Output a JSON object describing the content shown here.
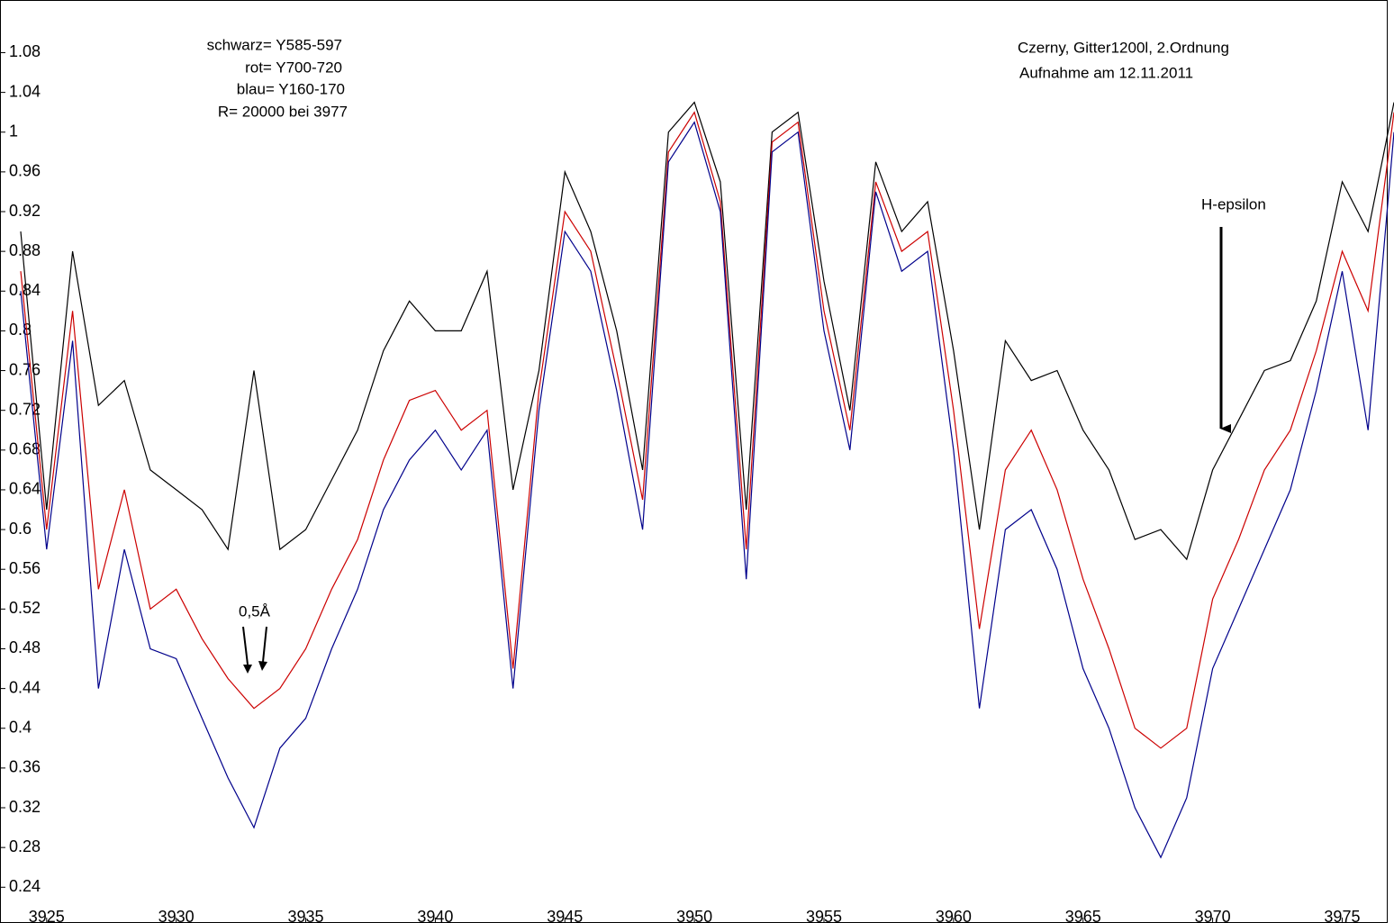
{
  "chart_data": {
    "type": "line",
    "annotations": [
      "schwarz= Y585-597",
      "rot= Y700-720",
      "blau= Y160-170",
      "R= 20000 bei 3977",
      "Czerny, Gitter1200l, 2.Ordnung",
      "Aufnahme am 12.11.2011",
      "H-epsilon",
      "0,5Å"
    ],
    "x": [
      3924,
      3925,
      3926,
      3927,
      3928,
      3929,
      3930,
      3931,
      3932,
      3933,
      3934,
      3935,
      3936,
      3937,
      3938,
      3939,
      3940,
      3941,
      3942,
      3943,
      3944,
      3945,
      3946,
      3947,
      3948,
      3949,
      3950,
      3951,
      3952,
      3953,
      3954,
      3955,
      3956,
      3957,
      3958,
      3959,
      3960,
      3961,
      3962,
      3963,
      3964,
      3965,
      3966,
      3967,
      3968,
      3969,
      3970,
      3971,
      3972,
      3973,
      3974,
      3975,
      3976,
      3977
    ],
    "series": [
      {
        "name": "schwarz",
        "color": "#000000",
        "values": [
          0.9,
          0.62,
          0.88,
          0.725,
          0.75,
          0.66,
          0.64,
          0.62,
          0.58,
          0.76,
          0.58,
          0.6,
          0.65,
          0.7,
          0.78,
          0.83,
          0.8,
          0.8,
          0.86,
          0.64,
          0.76,
          0.96,
          0.9,
          0.8,
          0.66,
          1.0,
          1.03,
          0.95,
          0.62,
          1.0,
          1.02,
          0.85,
          0.72,
          0.97,
          0.9,
          0.93,
          0.78,
          0.6,
          0.79,
          0.75,
          0.76,
          0.7,
          0.66,
          0.59,
          0.6,
          0.57,
          0.66,
          0.71,
          0.76,
          0.77,
          0.83,
          0.95,
          0.9,
          1.03
        ]
      },
      {
        "name": "rot",
        "color": "#cc0000",
        "values": [
          0.86,
          0.6,
          0.82,
          0.54,
          0.64,
          0.52,
          0.54,
          0.49,
          0.45,
          0.42,
          0.44,
          0.48,
          0.54,
          0.59,
          0.67,
          0.73,
          0.74,
          0.7,
          0.72,
          0.46,
          0.74,
          0.92,
          0.88,
          0.76,
          0.63,
          0.98,
          1.02,
          0.93,
          0.58,
          0.99,
          1.01,
          0.82,
          0.7,
          0.95,
          0.88,
          0.9,
          0.72,
          0.5,
          0.66,
          0.7,
          0.64,
          0.55,
          0.48,
          0.4,
          0.38,
          0.4,
          0.53,
          0.59,
          0.66,
          0.7,
          0.78,
          0.88,
          0.82,
          1.02
        ]
      },
      {
        "name": "blau",
        "color": "#00008b",
        "values": [
          0.84,
          0.58,
          0.79,
          0.44,
          0.58,
          0.48,
          0.47,
          0.41,
          0.35,
          0.3,
          0.38,
          0.41,
          0.48,
          0.54,
          0.62,
          0.67,
          0.7,
          0.66,
          0.7,
          0.44,
          0.72,
          0.9,
          0.86,
          0.74,
          0.6,
          0.97,
          1.01,
          0.92,
          0.55,
          0.98,
          1.0,
          0.8,
          0.68,
          0.94,
          0.86,
          0.88,
          0.68,
          0.42,
          0.6,
          0.62,
          0.56,
          0.46,
          0.4,
          0.32,
          0.27,
          0.33,
          0.46,
          0.52,
          0.58,
          0.64,
          0.74,
          0.86,
          0.7,
          1.0
        ]
      }
    ],
    "xlim": [
      3923.2,
      3977
    ],
    "ylim": [
      0.204,
      1.133
    ],
    "xticks": [
      3925,
      3930,
      3935,
      3940,
      3945,
      3950,
      3955,
      3960,
      3965,
      3970,
      3975
    ],
    "yticks": [
      1.08,
      1.04,
      1,
      0.96,
      0.92,
      0.88,
      0.84,
      0.8,
      0.76,
      0.72,
      0.68,
      0.64,
      0.6,
      0.56,
      0.52,
      0.48,
      0.44,
      0.4,
      0.36,
      0.32,
      0.28,
      0.24
    ],
    "grid": false
  }
}
